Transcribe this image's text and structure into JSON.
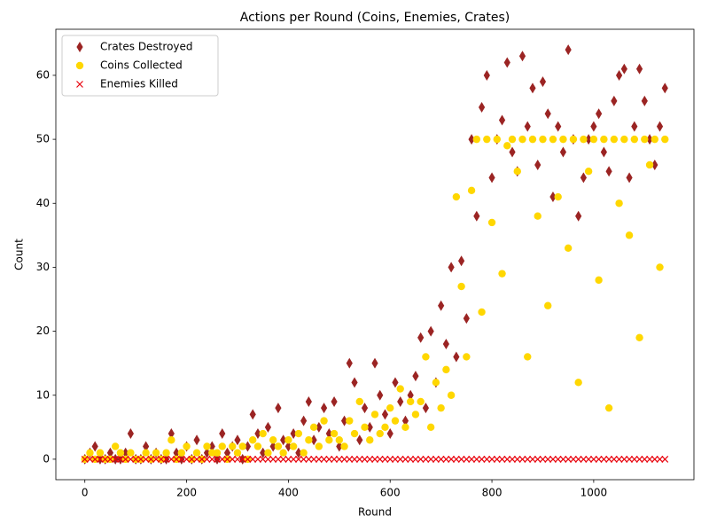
{
  "chart_data": {
    "type": "scatter",
    "title": "Actions per Round (Coins, Enemies, Crates)",
    "xlabel": "Round",
    "ylabel": "Count",
    "x": [
      0,
      10,
      20,
      30,
      40,
      50,
      60,
      70,
      80,
      90,
      100,
      110,
      120,
      130,
      140,
      150,
      160,
      170,
      180,
      190,
      200,
      210,
      220,
      230,
      240,
      250,
      260,
      270,
      280,
      290,
      300,
      310,
      320,
      330,
      340,
      350,
      360,
      370,
      380,
      390,
      400,
      410,
      420,
      430,
      440,
      450,
      460,
      470,
      480,
      490,
      500,
      510,
      520,
      530,
      540,
      550,
      560,
      570,
      580,
      590,
      600,
      610,
      620,
      630,
      640,
      650,
      660,
      670,
      680,
      690,
      700,
      710,
      720,
      730,
      740,
      750,
      760,
      770,
      780,
      790,
      800,
      810,
      820,
      830,
      840,
      850,
      860,
      870,
      880,
      890,
      900,
      910,
      920,
      930,
      940,
      950,
      960,
      970,
      980,
      990,
      1000,
      1010,
      1020,
      1030,
      1040,
      1050,
      1060,
      1070,
      1080,
      1090,
      1100,
      1110,
      1120,
      1130,
      1140
    ],
    "series": [
      {
        "name": "Crates Destroyed",
        "color": "#9b2423",
        "marker": "diamond",
        "values": [
          0,
          1,
          2,
          0,
          0,
          1,
          0,
          0,
          1,
          4,
          0,
          0,
          2,
          0,
          1,
          0,
          0,
          4,
          1,
          0,
          2,
          0,
          3,
          0,
          1,
          2,
          0,
          4,
          1,
          2,
          3,
          0,
          2,
          7,
          4,
          1,
          5,
          2,
          8,
          3,
          2,
          4,
          1,
          6,
          9,
          3,
          5,
          8,
          4,
          9,
          2,
          6,
          15,
          12,
          3,
          8,
          5,
          15,
          10,
          7,
          4,
          12,
          9,
          6,
          10,
          13,
          19,
          8,
          20,
          12,
          24,
          18,
          30,
          16,
          31,
          22,
          50,
          38,
          55,
          60,
          44,
          50,
          53,
          62,
          48,
          45,
          63,
          52,
          58,
          46,
          59,
          54,
          41,
          52,
          48,
          64,
          50,
          38,
          44,
          50,
          52,
          54,
          48,
          45,
          56,
          60,
          61,
          44,
          52,
          61,
          56,
          50,
          46,
          52,
          58
        ]
      },
      {
        "name": "Coins Collected",
        "color": "#ffd700",
        "marker": "circle",
        "values": [
          0,
          1,
          0,
          1,
          0,
          0,
          2,
          1,
          0,
          1,
          0,
          0,
          1,
          0,
          1,
          0,
          1,
          3,
          0,
          1,
          2,
          0,
          1,
          0,
          2,
          1,
          1,
          2,
          0,
          2,
          1,
          2,
          0,
          3,
          2,
          4,
          1,
          3,
          2,
          1,
          3,
          2,
          4,
          1,
          3,
          5,
          2,
          6,
          3,
          4,
          3,
          2,
          6,
          4,
          9,
          5,
          3,
          7,
          4,
          5,
          8,
          6,
          11,
          5,
          9,
          7,
          9,
          16,
          5,
          12,
          8,
          14,
          10,
          41,
          27,
          16,
          42,
          50,
          23,
          50,
          37,
          50,
          29,
          49,
          50,
          45,
          50,
          16,
          50,
          38,
          50,
          24,
          50,
          41,
          50,
          33,
          50,
          12,
          50,
          45,
          50,
          28,
          50,
          8,
          50,
          40,
          50,
          35,
          50,
          19,
          50,
          46,
          50,
          30,
          50
        ]
      },
      {
        "name": "Enemies Killed",
        "color": "#e8000b",
        "marker": "x",
        "values": [
          0,
          0,
          0,
          0,
          0,
          0,
          0,
          0,
          0,
          0,
          0,
          0,
          0,
          0,
          0,
          0,
          0,
          0,
          0,
          0,
          0,
          0,
          0,
          0,
          0,
          0,
          0,
          0,
          0,
          0,
          0,
          0,
          0,
          0,
          0,
          0,
          0,
          0,
          0,
          0,
          0,
          0,
          0,
          0,
          0,
          0,
          0,
          0,
          0,
          0,
          0,
          0,
          0,
          0,
          0,
          0,
          0,
          0,
          0,
          0,
          0,
          0,
          0,
          0,
          0,
          0,
          0,
          0,
          0,
          0,
          0,
          0,
          0,
          0,
          0,
          0,
          0,
          0,
          0,
          0,
          0,
          0,
          0,
          0,
          0,
          0,
          0,
          0,
          0,
          0,
          0,
          0,
          0,
          0,
          0,
          0,
          0,
          0,
          0,
          0,
          0,
          0,
          0,
          0,
          0,
          0,
          0,
          0,
          0,
          0,
          0,
          0,
          0,
          0,
          0
        ]
      }
    ],
    "xlim": [
      -57,
      1197
    ],
    "ylim": [
      -3.2,
      67.2
    ],
    "xticks": [
      0,
      200,
      400,
      600,
      800,
      1000
    ],
    "yticks": [
      0,
      10,
      20,
      30,
      40,
      50,
      60
    ],
    "legend": "upper left",
    "grid": false
  }
}
